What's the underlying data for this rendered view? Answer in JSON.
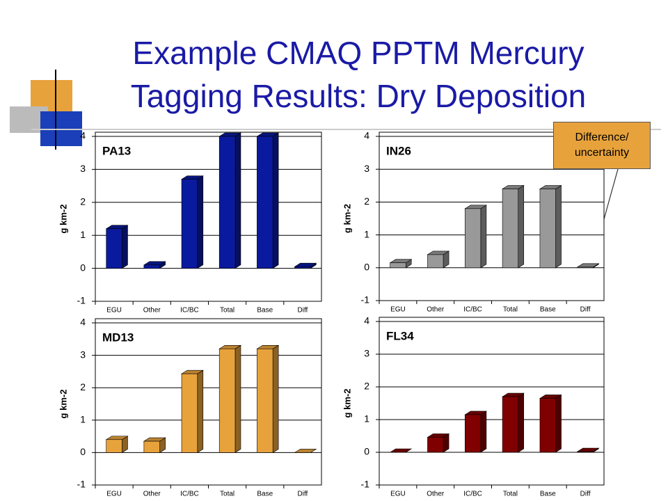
{
  "title": "Example CMAQ PPTM Mercury Tagging Results: Dry Deposition",
  "annotation": "Difference/ uncertainty",
  "chart_data": [
    {
      "type": "bar",
      "title": "PA13",
      "y_label": "g km-2",
      "categories": [
        "EGU",
        "Other",
        "IC/BC",
        "Total",
        "Base",
        "Diff"
      ],
      "values": [
        1.2,
        0.1,
        2.7,
        4.0,
        4.0,
        0.05
      ],
      "color": "#0a1a9e",
      "ylim": [
        -1,
        4
      ],
      "yticks": [
        -1,
        0,
        1,
        2,
        3,
        4
      ],
      "grid": true
    },
    {
      "type": "bar",
      "title": "IN26",
      "y_label": "g km-2",
      "categories": [
        "EGU",
        "Other",
        "IC/BC",
        "Total",
        "Base",
        "Diff"
      ],
      "values": [
        0.15,
        0.4,
        1.8,
        2.4,
        2.4,
        0.02
      ],
      "color": "#999999",
      "ylim": [
        -1,
        4
      ],
      "yticks": [
        -1,
        0,
        1,
        2,
        3,
        4
      ],
      "grid": true
    },
    {
      "type": "bar",
      "title": "MD13",
      "y_label": "g km-2",
      "categories": [
        "EGU",
        "Other",
        "IC/BC",
        "Total",
        "Base",
        "Diff"
      ],
      "values": [
        0.4,
        0.35,
        2.43,
        3.2,
        3.2,
        0.0
      ],
      "color": "#e8a23c",
      "ylim": [
        -1,
        4
      ],
      "yticks": [
        -1,
        0,
        1,
        2,
        3,
        4
      ],
      "grid": true
    },
    {
      "type": "bar",
      "title": "FL34",
      "y_label": "g km-2",
      "categories": [
        "EGU",
        "Other",
        "IC/BC",
        "Total",
        "Base",
        "Diff"
      ],
      "values": [
        0.0,
        0.46,
        1.15,
        1.7,
        1.65,
        0.02
      ],
      "color": "#800000",
      "ylim": [
        -1,
        4
      ],
      "yticks": [
        -1,
        0,
        1,
        2,
        3,
        4
      ],
      "grid": true
    }
  ]
}
